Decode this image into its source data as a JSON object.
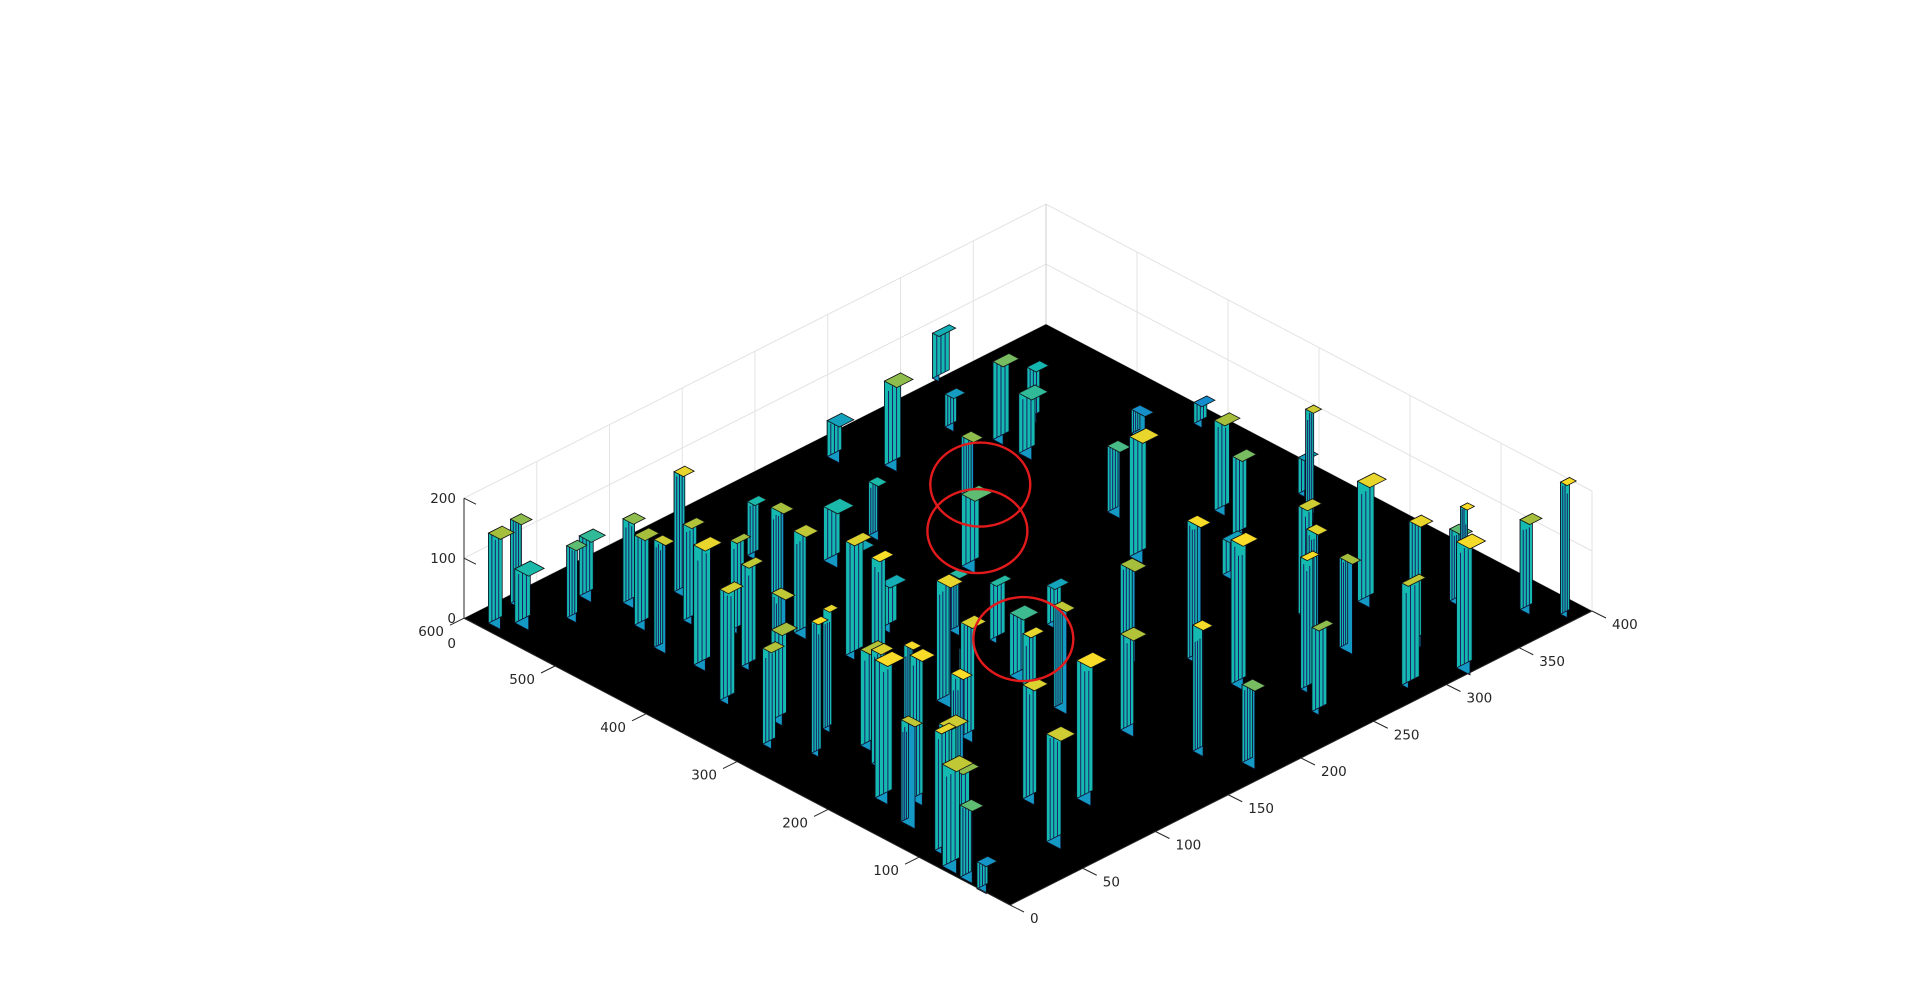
{
  "chart_data": {
    "type": "surface",
    "title": "",
    "xlabel": "",
    "ylabel": "",
    "zlabel": "",
    "xlim": [
      0,
      600
    ],
    "ylim": [
      0,
      400
    ],
    "zlim": [
      0,
      200
    ],
    "x_ticks": [
      "100",
      "200",
      "300",
      "400",
      "500",
      "600"
    ],
    "x_tick_values": [
      100,
      200,
      300,
      400,
      500,
      600
    ],
    "y_ticks": [
      "0",
      "50",
      "100",
      "150",
      "200",
      "250",
      "300",
      "350",
      "400"
    ],
    "y_tick_values": [
      0,
      50,
      100,
      150,
      200,
      250,
      300,
      350,
      400
    ],
    "z_ticks": [
      "0",
      "100",
      "200"
    ],
    "z_tick_values": [
      0,
      100,
      200
    ],
    "x_origin_label": "0",
    "grid": true,
    "colormap": "parula",
    "surface_base_color": "#000000",
    "annotation_color": "#e31a1c",
    "annotations": [
      {
        "shape": "ellipse",
        "x": 238,
        "y": 158
      },
      {
        "shape": "ellipse",
        "x": 378,
        "y": 214
      },
      {
        "shape": "ellipse",
        "x": 426,
        "y": 246
      }
    ],
    "peaks": [
      {
        "x": 30,
        "y": 3,
        "h": 45
      },
      {
        "x": 50,
        "y": 5,
        "h": 120
      },
      {
        "x": 70,
        "y": 8,
        "h": 170
      },
      {
        "x": 80,
        "y": 20,
        "h": 140
      },
      {
        "x": 95,
        "y": 15,
        "h": 200
      },
      {
        "x": 110,
        "y": 30,
        "h": 180
      },
      {
        "x": 125,
        "y": 45,
        "h": 230
      },
      {
        "x": 140,
        "y": 20,
        "h": 170
      },
      {
        "x": 160,
        "y": 40,
        "h": 240
      },
      {
        "x": 180,
        "y": 30,
        "h": 230
      },
      {
        "x": 195,
        "y": 55,
        "h": 210
      },
      {
        "x": 220,
        "y": 50,
        "h": 190
      },
      {
        "x": 245,
        "y": 60,
        "h": 160
      },
      {
        "x": 265,
        "y": 35,
        "h": 220
      },
      {
        "x": 285,
        "y": 55,
        "h": 200
      },
      {
        "x": 300,
        "y": 25,
        "h": 160
      },
      {
        "x": 320,
        "y": 45,
        "h": 150
      },
      {
        "x": 345,
        "y": 60,
        "h": 170
      },
      {
        "x": 370,
        "y": 40,
        "h": 185
      },
      {
        "x": 395,
        "y": 70,
        "h": 170
      },
      {
        "x": 420,
        "y": 55,
        "h": 200
      },
      {
        "x": 440,
        "y": 90,
        "h": 150
      },
      {
        "x": 460,
        "y": 50,
        "h": 180
      },
      {
        "x": 475,
        "y": 80,
        "h": 160
      },
      {
        "x": 495,
        "y": 60,
        "h": 150
      },
      {
        "x": 510,
        "y": 95,
        "h": 200
      },
      {
        "x": 525,
        "y": 70,
        "h": 140
      },
      {
        "x": 540,
        "y": 40,
        "h": 120
      },
      {
        "x": 560,
        "y": 20,
        "h": 90
      },
      {
        "x": 575,
        "y": 10,
        "h": 150
      },
      {
        "x": 585,
        "y": 30,
        "h": 140
      },
      {
        "x": 555,
        "y": 60,
        "h": 100
      },
      {
        "x": 100,
        "y": 80,
        "h": 190
      },
      {
        "x": 150,
        "y": 110,
        "h": 200
      },
      {
        "x": 70,
        "y": 100,
        "h": 230
      },
      {
        "x": 40,
        "y": 60,
        "h": 180
      },
      {
        "x": 200,
        "y": 100,
        "h": 190
      },
      {
        "x": 250,
        "y": 115,
        "h": 200
      },
      {
        "x": 300,
        "y": 100,
        "h": 220
      },
      {
        "x": 350,
        "y": 115,
        "h": 190
      },
      {
        "x": 400,
        "y": 110,
        "h": 170
      },
      {
        "x": 450,
        "y": 125,
        "h": 150
      },
      {
        "x": 180,
        "y": 150,
        "h": 170
      },
      {
        "x": 120,
        "y": 160,
        "h": 160
      },
      {
        "x": 60,
        "y": 170,
        "h": 210
      },
      {
        "x": 20,
        "y": 180,
        "h": 130
      },
      {
        "x": 40,
        "y": 240,
        "h": 140
      },
      {
        "x": 70,
        "y": 250,
        "h": 220
      },
      {
        "x": 110,
        "y": 230,
        "h": 240
      },
      {
        "x": 160,
        "y": 230,
        "h": 230
      },
      {
        "x": 200,
        "y": 210,
        "h": 150
      },
      {
        "x": 20,
        "y": 290,
        "h": 170
      },
      {
        "x": 5,
        "y": 320,
        "h": 210
      },
      {
        "x": 25,
        "y": 330,
        "h": 240
      },
      {
        "x": 60,
        "y": 320,
        "h": 200
      },
      {
        "x": 90,
        "y": 290,
        "h": 150
      },
      {
        "x": 10,
        "y": 390,
        "h": 220
      },
      {
        "x": 35,
        "y": 380,
        "h": 150
      },
      {
        "x": 237,
        "y": 158,
        "h": 105
      },
      {
        "x": 380,
        "y": 215,
        "h": 120
      },
      {
        "x": 430,
        "y": 243,
        "h": 140
      },
      {
        "x": 110,
        "y": 280,
        "h": 195
      },
      {
        "x": 130,
        "y": 330,
        "h": 200
      },
      {
        "x": 290,
        "y": 175,
        "h": 95
      },
      {
        "x": 300,
        "y": 280,
        "h": 200
      },
      {
        "x": 270,
        "y": 330,
        "h": 130
      },
      {
        "x": 305,
        "y": 340,
        "h": 150
      },
      {
        "x": 470,
        "y": 310,
        "h": 100
      },
      {
        "x": 500,
        "y": 310,
        "h": 130
      },
      {
        "x": 360,
        "y": 300,
        "h": 110
      },
      {
        "x": 530,
        "y": 255,
        "h": 140
      },
      {
        "x": 570,
        "y": 240,
        "h": 60
      },
      {
        "x": 465,
        "y": 200,
        "h": 90
      },
      {
        "x": 360,
        "y": 145,
        "h": 75
      },
      {
        "x": 420,
        "y": 160,
        "h": 70
      },
      {
        "x": 460,
        "y": 170,
        "h": 90
      },
      {
        "x": 510,
        "y": 145,
        "h": 90
      },
      {
        "x": 240,
        "y": 120,
        "h": 90
      },
      {
        "x": 320,
        "y": 165,
        "h": 95
      },
      {
        "x": 275,
        "y": 205,
        "h": 65
      },
      {
        "x": 505,
        "y": 335,
        "h": 85
      },
      {
        "x": 600,
        "y": 330,
        "h": 75
      },
      {
        "x": 540,
        "y": 300,
        "h": 55
      },
      {
        "x": 230,
        "y": 300,
        "h": 60
      },
      {
        "x": 150,
        "y": 300,
        "h": 180
      },
      {
        "x": 80,
        "y": 360,
        "h": 120
      },
      {
        "x": 250,
        "y": 365,
        "h": 180
      },
      {
        "x": 280,
        "y": 380,
        "h": 60
      },
      {
        "x": 430,
        "y": 360,
        "h": 40
      },
      {
        "x": 410,
        "y": 390,
        "h": 35
      }
    ]
  }
}
